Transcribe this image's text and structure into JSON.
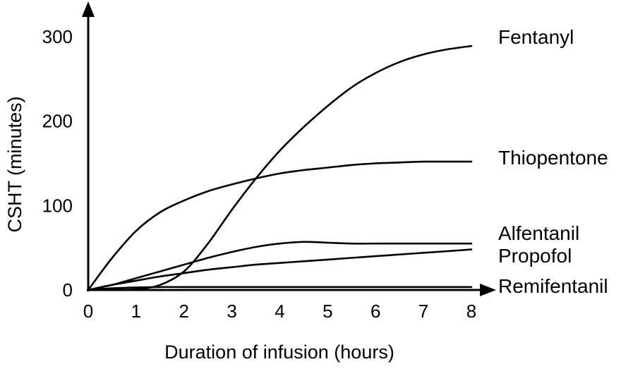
{
  "chart_data": {
    "type": "line",
    "title": "",
    "xlabel": "Duration of infusion (hours)",
    "ylabel": "CSHT (minutes)",
    "xlim": [
      0,
      8
    ],
    "ylim": [
      0,
      300
    ],
    "x_ticks": [
      0,
      1,
      2,
      3,
      4,
      5,
      6,
      7,
      8
    ],
    "y_ticks": [
      0,
      100,
      200,
      300
    ],
    "grid": false,
    "legend": "labels at right end of each line",
    "series": [
      {
        "name": "Fentanyl",
        "x": [
          0,
          0.5,
          1,
          1.5,
          2,
          2.5,
          3,
          3.5,
          4,
          4.5,
          5,
          5.5,
          6,
          6.5,
          7,
          7.5,
          8
        ],
        "y": [
          0,
          0,
          1,
          6,
          22,
          55,
          95,
          132,
          165,
          193,
          218,
          240,
          257,
          270,
          279,
          285,
          289
        ]
      },
      {
        "name": "Thiopentone",
        "x": [
          0,
          0.5,
          1,
          1.5,
          2,
          2.5,
          3,
          3.5,
          4,
          4.5,
          5,
          5.5,
          6,
          6.5,
          7,
          7.5,
          8
        ],
        "y": [
          0,
          38,
          70,
          92,
          106,
          117,
          125,
          132,
          138,
          142,
          145,
          148,
          150,
          151,
          152,
          152,
          152
        ]
      },
      {
        "name": "Alfentanil",
        "x": [
          0,
          0.5,
          1,
          1.5,
          2,
          2.5,
          3,
          3.5,
          4,
          4.5,
          5,
          5.5,
          6,
          6.5,
          7,
          7.5,
          8
        ],
        "y": [
          0,
          6,
          14,
          22,
          30,
          38,
          45,
          51,
          55,
          57,
          56,
          55,
          55,
          55,
          55,
          55,
          55
        ]
      },
      {
        "name": "Propofol",
        "x": [
          0,
          0.5,
          1,
          1.5,
          2,
          2.5,
          3,
          3.5,
          4,
          4.5,
          5,
          5.5,
          6,
          6.5,
          7,
          7.5,
          8
        ],
        "y": [
          0,
          6,
          11,
          16,
          20,
          24,
          27,
          30,
          32,
          34,
          36,
          38,
          40,
          42,
          44,
          46,
          48
        ]
      },
      {
        "name": "Remifentanil",
        "x": [
          0,
          0.5,
          1,
          1.5,
          2,
          3,
          4,
          5,
          6,
          7,
          8
        ],
        "y": [
          0,
          2,
          3,
          3.5,
          3.5,
          3.5,
          3.5,
          3.5,
          3.5,
          3.5,
          3.5
        ]
      }
    ]
  }
}
